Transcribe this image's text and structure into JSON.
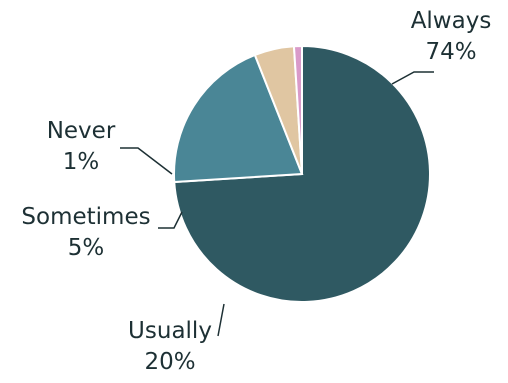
{
  "chart_data": {
    "type": "pie",
    "title": "",
    "slices": [
      {
        "label": "Always",
        "value": 74,
        "pct_label": "74%",
        "color": "#2f5962"
      },
      {
        "label": "Usually",
        "value": 20,
        "pct_label": "20%",
        "color": "#4a8696"
      },
      {
        "label": "Sometimes",
        "value": 5,
        "pct_label": "5%",
        "color": "#e0c6a2"
      },
      {
        "label": "Never",
        "value": 1,
        "pct_label": "1%",
        "color": "#d99ac9"
      }
    ],
    "start_angle_deg": 0,
    "direction": "clockwise",
    "legend": "none",
    "labels": "outside-with-leader-lines"
  }
}
